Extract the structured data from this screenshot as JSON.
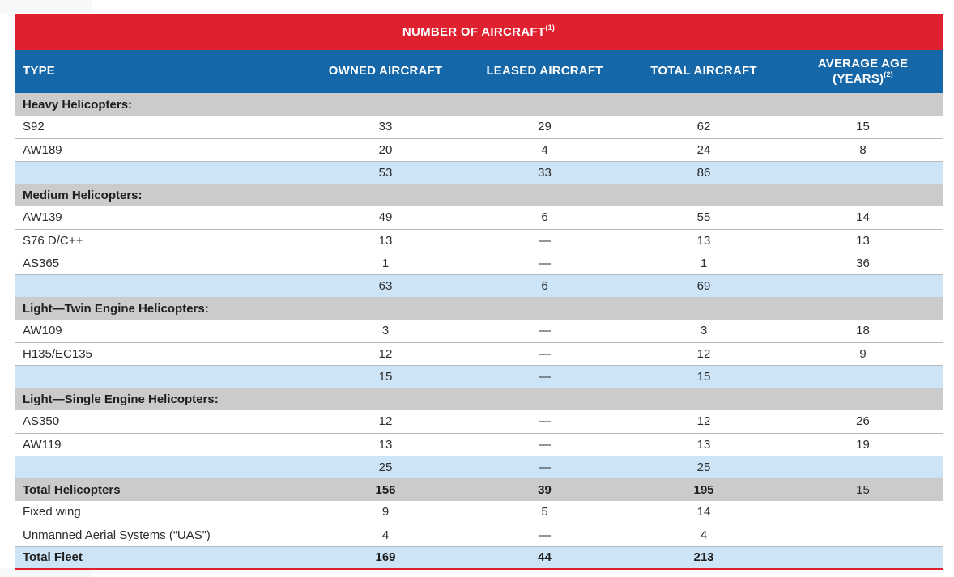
{
  "banner": {
    "title": "NUMBER OF AIRCRAFT",
    "footnote": "(1)"
  },
  "columns": {
    "type": "TYPE",
    "owned": "OWNED AIRCRAFT",
    "leased": "LEASED AIRCRAFT",
    "total": "TOTAL AIRCRAFT",
    "age_line1": "AVERAGE AGE",
    "age_line2": "(YEARS)",
    "age_footnote": "(2)"
  },
  "table": {
    "rows": [
      {
        "style": "section",
        "label": "Heavy Helicopters:"
      },
      {
        "style": "data",
        "label": "S92",
        "owned": "33",
        "leased": "29",
        "total": "62",
        "age": "15"
      },
      {
        "style": "data",
        "label": "AW189",
        "owned": "20",
        "leased": "4",
        "total": "24",
        "age": "8"
      },
      {
        "style": "subtotal",
        "label": "",
        "owned": "53",
        "leased": "33",
        "total": "86",
        "age": ""
      },
      {
        "style": "section",
        "label": "Medium Helicopters:"
      },
      {
        "style": "data",
        "label": "AW139",
        "owned": "49",
        "leased": "6",
        "total": "55",
        "age": "14"
      },
      {
        "style": "data",
        "label": "S76 D/C++",
        "owned": "13",
        "leased": "—",
        "total": "13",
        "age": "13"
      },
      {
        "style": "data",
        "label": "AS365",
        "owned": "1",
        "leased": "—",
        "total": "1",
        "age": "36"
      },
      {
        "style": "subtotal",
        "label": "",
        "owned": "63",
        "leased": "6",
        "total": "69",
        "age": ""
      },
      {
        "style": "section",
        "label": "Light—Twin Engine Helicopters:"
      },
      {
        "style": "data",
        "label": "AW109",
        "owned": "3",
        "leased": "—",
        "total": "3",
        "age": "18"
      },
      {
        "style": "data",
        "label": "H135/EC135",
        "owned": "12",
        "leased": "—",
        "total": "12",
        "age": "9"
      },
      {
        "style": "subtotal",
        "label": "",
        "owned": "15",
        "leased": "—",
        "total": "15",
        "age": ""
      },
      {
        "style": "section",
        "label": "Light—Single Engine Helicopters:"
      },
      {
        "style": "data",
        "label": "AS350",
        "owned": "12",
        "leased": "—",
        "total": "12",
        "age": "26"
      },
      {
        "style": "data",
        "label": "AW119",
        "owned": "13",
        "leased": "—",
        "total": "13",
        "age": "19"
      },
      {
        "style": "subtotal",
        "label": "",
        "owned": "25",
        "leased": "—",
        "total": "25",
        "age": ""
      },
      {
        "style": "total-gray",
        "label": "Total Helicopters",
        "owned": "156",
        "leased": "39",
        "total": "195",
        "age": "15"
      },
      {
        "style": "data",
        "label": "Fixed wing",
        "owned": "9",
        "leased": "5",
        "total": "14",
        "age": ""
      },
      {
        "style": "data",
        "label": "Unmanned Aerial Systems (“UAS”)",
        "owned": "4",
        "leased": "—",
        "total": "4",
        "age": ""
      },
      {
        "style": "total-blue",
        "label": "Total Fleet",
        "owned": "169",
        "leased": "44",
        "total": "213",
        "age": ""
      }
    ]
  },
  "colors": {
    "banner_red": "#df202e",
    "header_blue": "#1667a7",
    "subtotal_blue": "#cde4f6",
    "section_gray": "#cbcbcb",
    "row_divider": "#b9b9b9",
    "bottom_rule_red": "#df202e",
    "text_dark": "#2c2c2c"
  }
}
